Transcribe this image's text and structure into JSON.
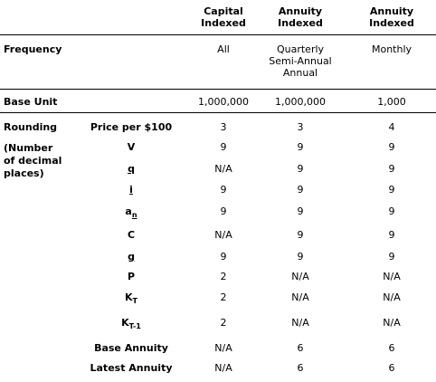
{
  "columns": [
    "Capital\nIndexed",
    "Annuity\nIndexed",
    "Annuity\nIndexed"
  ],
  "sections": {
    "frequency": {
      "label": "Frequency",
      "values": [
        "All",
        "Quarterly\nSemi-Annual\nAnnual",
        "Monthly"
      ]
    },
    "base_unit": {
      "label": "Base Unit",
      "values": [
        "1,000,000",
        "1,000,000",
        "1,000"
      ]
    },
    "rounding": {
      "label": "Rounding",
      "sublabel": "(Number\nof decimal\nplaces)",
      "rows": [
        {
          "name": "Price per $100",
          "values": [
            "3",
            "3",
            "4"
          ]
        },
        {
          "name": "V",
          "values": [
            "9",
            "9",
            "9"
          ]
        },
        {
          "name": "q",
          "values": [
            "N/A",
            "9",
            "9"
          ]
        },
        {
          "name": "i",
          "values": [
            "9",
            "9",
            "9"
          ]
        },
        {
          "name": "a",
          "sub": "n",
          "values": [
            "9",
            "9",
            "9"
          ]
        },
        {
          "name": "C",
          "values": [
            "N/A",
            "9",
            "9"
          ]
        },
        {
          "name": "g",
          "values": [
            "9",
            "9",
            "9"
          ]
        },
        {
          "name": "P",
          "values": [
            "2",
            "N/A",
            "N/A"
          ]
        },
        {
          "name": "K",
          "sub": "T",
          "values": [
            "2",
            "N/A",
            "N/A"
          ]
        },
        {
          "name": "K",
          "sub": "T-1",
          "values": [
            "2",
            "N/A",
            "N/A"
          ]
        },
        {
          "name": "Base Annuity",
          "values": [
            "N/A",
            "6",
            "6"
          ]
        },
        {
          "name": "Latest Annuity",
          "values": [
            "N/A",
            "6",
            "6"
          ]
        }
      ]
    }
  }
}
